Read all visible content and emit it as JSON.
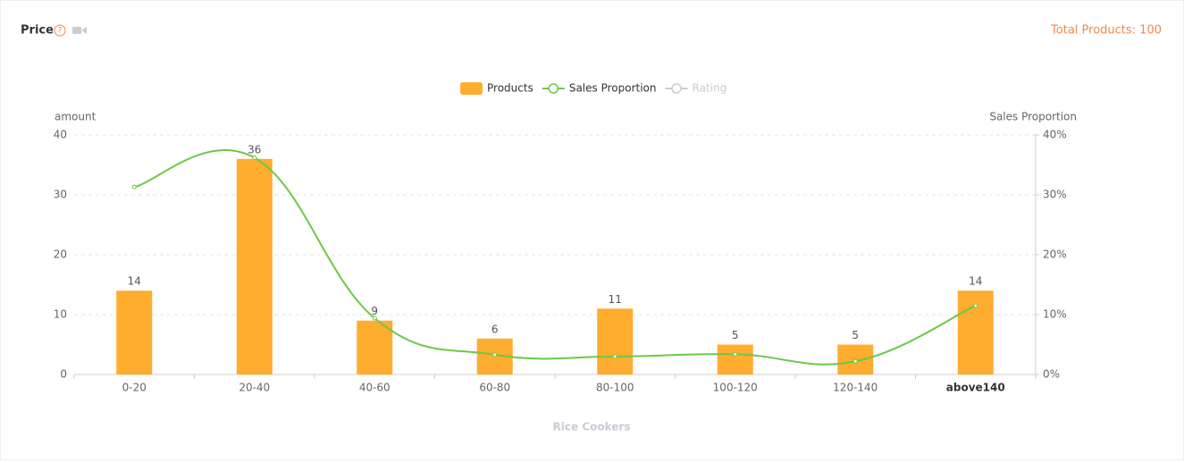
{
  "header": {
    "title": "Price",
    "total": "Total Products: 100"
  },
  "chart_data": {
    "type": "bar",
    "x_label": "Rice Cookers",
    "y_label": "amount",
    "y2_label": "Sales Proportion",
    "categories": [
      "0-20",
      "20-40",
      "40-60",
      "60-80",
      "80-100",
      "100-120",
      "120-140",
      "above140"
    ],
    "series": [
      {
        "name": "Products",
        "type": "bar",
        "color": "#ffad2e",
        "values": [
          14,
          36,
          9,
          6,
          11,
          5,
          5,
          14
        ]
      },
      {
        "name": "Sales Proportion",
        "type": "line",
        "axis": "y2",
        "color": "#6cc84a",
        "values": [
          31.3,
          36.2,
          9.4,
          3.3,
          3.0,
          3.4,
          2.2,
          11.5
        ]
      },
      {
        "name": "Rating",
        "type": "line",
        "color": "#cccccc",
        "disabled": true
      }
    ],
    "ylim": [
      0,
      40
    ],
    "yticks": [
      0,
      10,
      20,
      30,
      40
    ],
    "y2lim": [
      0,
      40
    ],
    "y2ticks": [
      {
        "value": 0,
        "label": "0%"
      },
      {
        "value": 10,
        "label": "10%"
      },
      {
        "value": 20,
        "label": "20%"
      },
      {
        "value": 30,
        "label": "30%"
      },
      {
        "value": 40,
        "label": "40%"
      }
    ],
    "grid": true,
    "legend": "top"
  }
}
